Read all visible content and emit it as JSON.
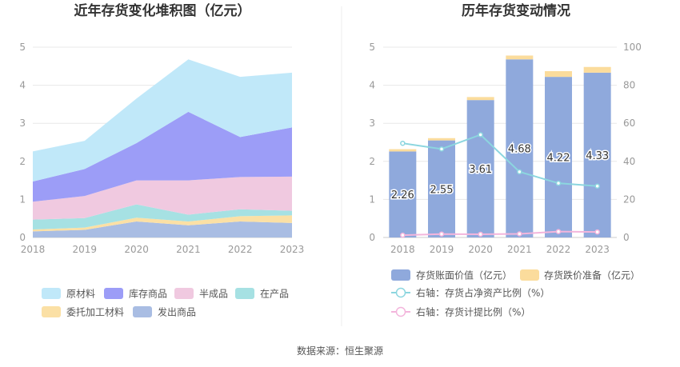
{
  "source_text": "数据来源：恒生聚源",
  "chart_data": [
    {
      "type": "area",
      "title": "近年存货变化堆积图（亿元）",
      "x": [
        "2018",
        "2019",
        "2020",
        "2021",
        "2022",
        "2023"
      ],
      "ylim": [
        0,
        5
      ],
      "yticks": [
        "0",
        "1",
        "2",
        "3",
        "4",
        "5"
      ],
      "grid": true,
      "legend_position": "bottom",
      "series": [
        {
          "name": "发出商品",
          "color": "#a9bde3",
          "values": [
            0.16,
            0.2,
            0.42,
            0.32,
            0.42,
            0.38
          ]
        },
        {
          "name": "委托加工材料",
          "color": "#fbe0a5",
          "values": [
            0.05,
            0.06,
            0.1,
            0.1,
            0.14,
            0.2
          ]
        },
        {
          "name": "在产品",
          "color": "#a6e1e3",
          "values": [
            0.26,
            0.25,
            0.35,
            0.18,
            0.18,
            0.12
          ]
        },
        {
          "name": "半成品",
          "color": "#f0c9e0",
          "values": [
            0.47,
            0.58,
            0.63,
            0.9,
            0.85,
            0.9
          ]
        },
        {
          "name": "库存商品",
          "color": "#9c9df7",
          "values": [
            0.53,
            0.71,
            0.98,
            1.8,
            1.05,
            1.29
          ]
        },
        {
          "name": "原材料",
          "color": "#c0e8f9",
          "values": [
            0.79,
            0.74,
            1.17,
            1.38,
            1.58,
            1.44
          ]
        }
      ]
    },
    {
      "type": "bar",
      "title": "历年存货变动情况",
      "categories": [
        "2018",
        "2019",
        "2020",
        "2021",
        "2022",
        "2023"
      ],
      "ylim": [
        0,
        5
      ],
      "yticks": [
        "0",
        "1",
        "2",
        "3",
        "4",
        "5"
      ],
      "y2lim": [
        0,
        100
      ],
      "y2ticks": [
        "0",
        "20",
        "40",
        "60",
        "80",
        "100"
      ],
      "grid": true,
      "legend_position": "bottom",
      "bars": [
        {
          "name": "存货账面价值（亿元）",
          "color": "#8fa9dc",
          "values": [
            2.26,
            2.55,
            3.61,
            4.68,
            4.22,
            4.33
          ],
          "labels": [
            "2.26",
            "2.55",
            "3.61",
            "4.68",
            "4.22",
            "4.33"
          ]
        },
        {
          "name": "存货跌价准备（亿元）",
          "color": "#fbdc9c",
          "values": [
            0.06,
            0.06,
            0.08,
            0.1,
            0.15,
            0.15
          ]
        }
      ],
      "lines": [
        {
          "name": "右轴：存货占净资产比例（%）",
          "color": "#8cd6df",
          "values": [
            49.5,
            46.5,
            54,
            34.5,
            28.5,
            27
          ]
        },
        {
          "name": "右轴：存货计提比例（%）",
          "color": "#f3b5dc",
          "values": [
            1.2,
            1.8,
            1.7,
            1.9,
            3.1,
            2.9
          ]
        }
      ]
    }
  ]
}
